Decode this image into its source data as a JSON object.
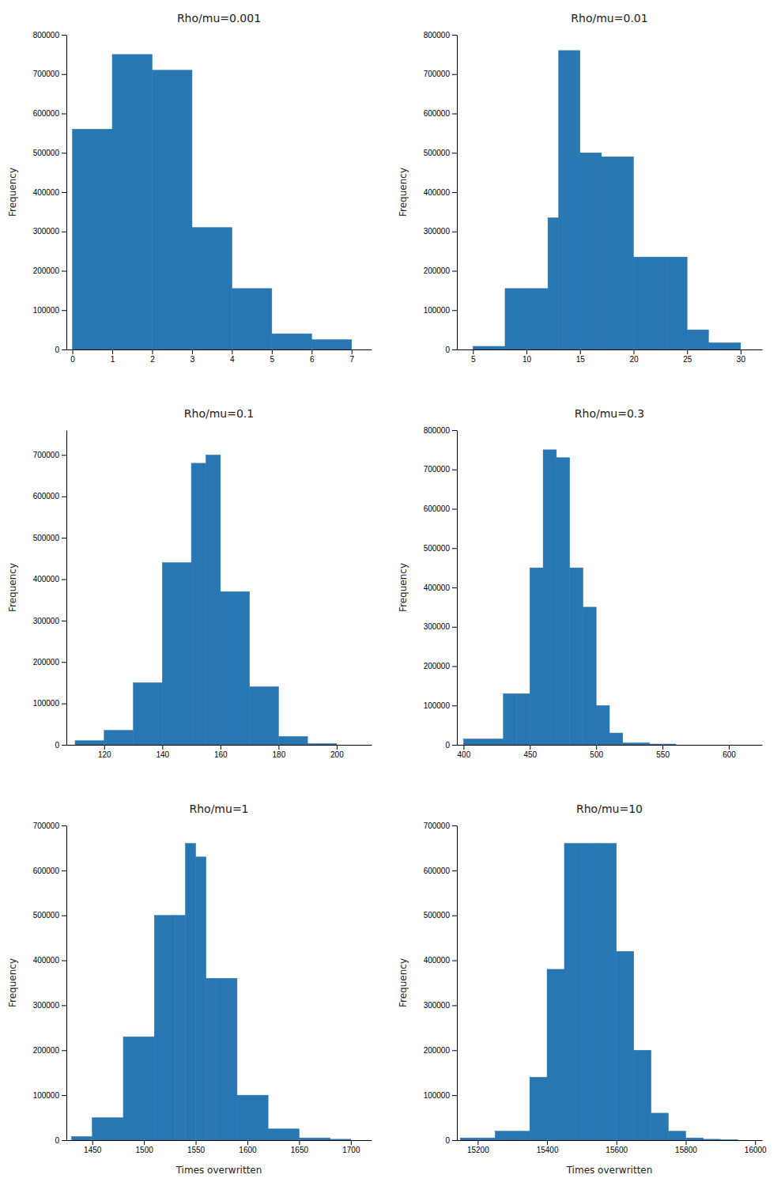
{
  "chart_data": [
    {
      "type": "histogram",
      "title": "Rho/mu=0.001",
      "bins": [
        0,
        1,
        2,
        3,
        4,
        5,
        6,
        7
      ],
      "values": [
        560000,
        750000,
        710000,
        310000,
        155000,
        40000,
        25000
      ],
      "color": "#2876b2",
      "xlim": [
        -0.15,
        7.5
      ],
      "xticks": [
        0,
        1,
        2,
        3,
        4,
        5,
        6,
        7
      ],
      "ylim": [
        0,
        800000
      ],
      "yticks": [
        0,
        100000,
        200000,
        300000,
        400000,
        500000,
        600000,
        700000,
        800000
      ],
      "ylabel": "Frequency",
      "grid": false
    },
    {
      "type": "histogram",
      "title": "Rho/mu=0.01",
      "bins": [
        5,
        8,
        10,
        12,
        13,
        15,
        17,
        20,
        23,
        25,
        27,
        30
      ],
      "values": [
        8000,
        155000,
        155000,
        335000,
        760000,
        500000,
        490000,
        235000,
        235000,
        50000,
        17000
      ],
      "color": "#2876b2",
      "xlim": [
        3.5,
        32
      ],
      "xticks": [
        5,
        10,
        15,
        20,
        25,
        30
      ],
      "ylim": [
        0,
        800000
      ],
      "yticks": [
        0,
        100000,
        200000,
        300000,
        400000,
        500000,
        600000,
        700000,
        800000
      ],
      "ylabel": "Frequency",
      "grid": false
    },
    {
      "type": "histogram",
      "title": "Rho/mu=0.1",
      "bins": [
        110,
        120,
        130,
        140,
        150,
        155,
        160,
        165,
        170,
        180,
        190,
        200,
        210
      ],
      "values": [
        10000,
        35000,
        150000,
        440000,
        680000,
        700000,
        370000,
        370000,
        140000,
        20000,
        3000,
        0
      ],
      "color": "#2876b2",
      "xlim": [
        107,
        212
      ],
      "xticks": [
        120,
        140,
        160,
        180,
        200
      ],
      "ylim": [
        0,
        760000
      ],
      "yticks": [
        0,
        100000,
        200000,
        300000,
        400000,
        500000,
        600000,
        700000
      ],
      "ylabel": "Frequency",
      "grid": false
    },
    {
      "type": "histogram",
      "title": "Rho/mu=0.3",
      "bins": [
        400,
        430,
        440,
        450,
        460,
        470,
        480,
        490,
        500,
        510,
        520,
        540,
        560,
        580
      ],
      "values": [
        15000,
        130000,
        130000,
        450000,
        750000,
        730000,
        450000,
        350000,
        100000,
        30000,
        5000,
        2000,
        0
      ],
      "color": "#2876b2",
      "xlim": [
        395,
        625
      ],
      "xticks": [
        400,
        450,
        500,
        550,
        600
      ],
      "ylim": [
        0,
        800000
      ],
      "yticks": [
        0,
        100000,
        200000,
        300000,
        400000,
        500000,
        600000,
        700000,
        800000
      ],
      "ylabel": "Frequency",
      "grid": false
    },
    {
      "type": "histogram",
      "title": "Rho/mu=1",
      "bins": [
        1430,
        1450,
        1480,
        1510,
        1530,
        1540,
        1550,
        1560,
        1570,
        1590,
        1620,
        1650,
        1680,
        1700,
        1720
      ],
      "values": [
        8000,
        50000,
        230000,
        500000,
        500000,
        660000,
        630000,
        360000,
        360000,
        100000,
        25000,
        5000,
        2000,
        0
      ],
      "color": "#2876b2",
      "xlim": [
        1425,
        1720
      ],
      "xticks": [
        1450,
        1500,
        1550,
        1600,
        1650,
        1700
      ],
      "ylim": [
        0,
        700000
      ],
      "yticks": [
        0,
        100000,
        200000,
        300000,
        400000,
        500000,
        600000,
        700000
      ],
      "xlabel": "Times overwritten",
      "ylabel": "Frequency",
      "grid": false
    },
    {
      "type": "histogram",
      "title": "Rho/mu=10",
      "bins": [
        15150,
        15250,
        15350,
        15400,
        15450,
        15500,
        15550,
        15600,
        15650,
        15700,
        15750,
        15800,
        15850,
        15900,
        15950,
        16000
      ],
      "values": [
        5000,
        20000,
        140000,
        380000,
        660000,
        660000,
        660000,
        420000,
        200000,
        60000,
        20000,
        5000,
        2000,
        1000,
        0
      ],
      "color": "#2876b2",
      "xlim": [
        15140,
        16020
      ],
      "xticks": [
        15200,
        15400,
        15600,
        15800,
        16000
      ],
      "ylim": [
        0,
        700000
      ],
      "yticks": [
        0,
        100000,
        200000,
        300000,
        400000,
        500000,
        600000,
        700000
      ],
      "xlabel": "Times overwritten",
      "ylabel": "Frequency",
      "grid": false
    }
  ]
}
